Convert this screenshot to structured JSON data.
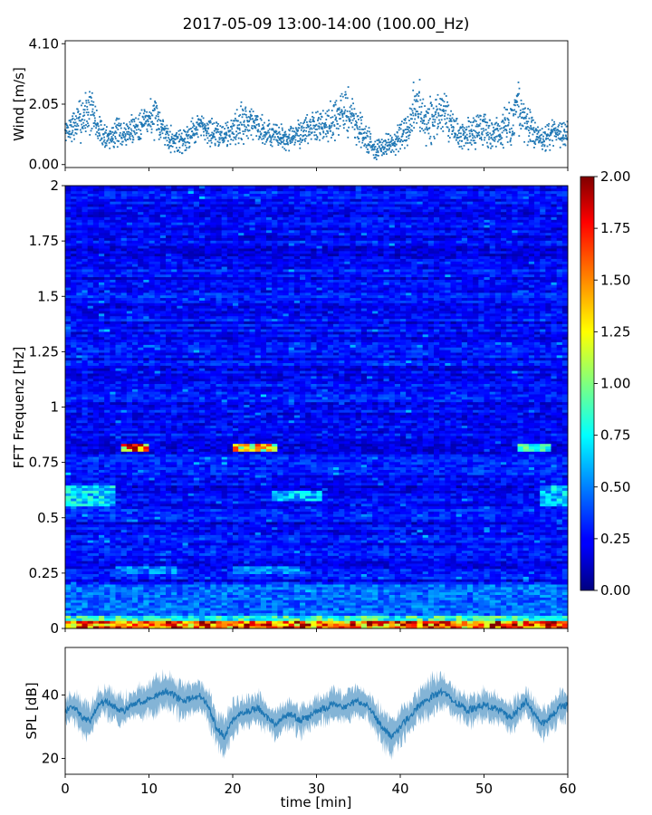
{
  "figure": {
    "title": "2017-05-09 13:00-14:00 (100.00_Hz)"
  },
  "chart_data": [
    {
      "id": "wind",
      "type": "scatter",
      "ylabel": "Wind [m/s]",
      "xlim": [
        0,
        60
      ],
      "ylim": [
        -0.1,
        4.2
      ],
      "yticks": [
        0.0,
        2.05,
        4.1
      ],
      "yticklabels": [
        "0.00",
        "2.05",
        "4.10"
      ],
      "color": "#1f77b4",
      "grid": false,
      "series": [
        {
          "x": [
            0,
            1,
            2,
            3,
            4,
            5,
            6,
            7,
            8,
            9,
            10,
            11,
            12,
            13,
            14,
            15,
            16,
            17,
            18,
            19,
            20,
            21,
            22,
            23,
            24,
            25,
            26,
            27,
            28,
            29,
            30,
            31,
            32,
            33,
            34,
            35,
            36,
            37,
            38,
            39,
            40,
            41,
            42,
            43,
            44,
            45,
            46,
            47,
            48,
            49,
            50,
            51,
            52,
            53,
            54,
            55,
            56,
            57,
            58,
            59,
            60
          ],
          "y": [
            1.1,
            1.3,
            1.6,
            1.9,
            1.2,
            0.9,
            1.1,
            1.0,
            1.2,
            1.4,
            1.6,
            1.5,
            1.1,
            0.8,
            0.8,
            1.1,
            1.3,
            1.2,
            1.0,
            1.0,
            1.2,
            1.4,
            1.5,
            1.3,
            1.1,
            1.0,
            0.9,
            0.9,
            1.1,
            1.2,
            1.3,
            1.4,
            1.5,
            1.7,
            1.8,
            1.2,
            0.9,
            0.5,
            0.6,
            0.7,
            0.9,
            1.1,
            2.2,
            1.3,
            1.5,
            1.9,
            1.4,
            1.0,
            1.0,
            1.1,
            1.2,
            1.0,
            1.1,
            1.4,
            1.9,
            1.4,
            1.0,
            0.8,
            1.0,
            1.1,
            1.1
          ],
          "spread": [
            0.5,
            0.6,
            0.9,
            1.0,
            0.6,
            0.5,
            0.6,
            0.5,
            0.6,
            0.7,
            0.8,
            0.7,
            0.6,
            0.5,
            0.5,
            0.6,
            0.6,
            0.6,
            0.5,
            0.5,
            0.6,
            0.9,
            0.7,
            0.6,
            0.6,
            0.5,
            0.5,
            0.5,
            0.6,
            0.6,
            0.6,
            0.7,
            0.8,
            0.9,
            1.0,
            0.7,
            0.6,
            0.4,
            0.4,
            0.5,
            0.6,
            0.7,
            1.4,
            0.8,
            1.0,
            1.0,
            0.8,
            0.6,
            0.6,
            0.6,
            0.7,
            0.6,
            0.7,
            0.8,
            1.3,
            0.8,
            0.6,
            0.5,
            0.6,
            0.6,
            0.6
          ]
        }
      ]
    },
    {
      "id": "spectrogram",
      "type": "heatmap",
      "ylabel": "FFT Frequenz [Hz]",
      "xlim": [
        0,
        60
      ],
      "ylim": [
        0,
        2
      ],
      "yticks": [
        0,
        0.25,
        0.5,
        0.75,
        1,
        1.25,
        1.5,
        1.75,
        2
      ],
      "yticklabels": [
        "0",
        "0.25",
        "0.5",
        "0.75",
        "1",
        "1.25",
        "1.5",
        "1.75",
        "2"
      ],
      "colormap": "jet",
      "clim": [
        0,
        2
      ],
      "colorbar_ticks": [
        0,
        0.25,
        0.5,
        0.75,
        1,
        1.25,
        1.5,
        1.75,
        2
      ],
      "colorbar_ticklabels": [
        "0.00",
        "0.25",
        "0.50",
        "0.75",
        "1.00",
        "1.25",
        "1.50",
        "1.75",
        "2.00"
      ],
      "background_level": 0.25,
      "features": [
        {
          "freq": [
            0.0,
            0.03
          ],
          "time": [
            0,
            60
          ],
          "value": 1.9
        },
        {
          "freq": [
            0.03,
            0.06
          ],
          "time": [
            0,
            60
          ],
          "value": 1.0
        },
        {
          "freq": [
            0.06,
            0.2
          ],
          "time": [
            0,
            60
          ],
          "value": 0.55
        },
        {
          "freq": [
            0.8,
            0.83
          ],
          "time": [
            7,
            10
          ],
          "value": 1.8
        },
        {
          "freq": [
            0.8,
            0.83
          ],
          "time": [
            20,
            25
          ],
          "value": 1.5
        },
        {
          "freq": [
            0.8,
            0.83
          ],
          "time": [
            54,
            58
          ],
          "value": 1.0
        },
        {
          "freq": [
            0.55,
            0.65
          ],
          "time": [
            0,
            6
          ],
          "value": 0.8
        },
        {
          "freq": [
            0.58,
            0.62
          ],
          "time": [
            25,
            31
          ],
          "value": 0.75
        },
        {
          "freq": [
            0.55,
            0.65
          ],
          "time": [
            57,
            60
          ],
          "value": 0.75
        },
        {
          "freq": [
            0.25,
            0.28
          ],
          "time": [
            6,
            13
          ],
          "value": 0.6
        },
        {
          "freq": [
            0.25,
            0.28
          ],
          "time": [
            20,
            28
          ],
          "value": 0.6
        }
      ]
    },
    {
      "id": "spl",
      "type": "area",
      "ylabel": "SPL [dB]",
      "xlabel": "time [min]",
      "xlim": [
        0,
        60
      ],
      "ylim": [
        15,
        55
      ],
      "xticks": [
        0,
        10,
        20,
        30,
        40,
        50,
        60
      ],
      "xticklabels": [
        "0",
        "10",
        "20",
        "30",
        "40",
        "50",
        "60"
      ],
      "yticks": [
        20,
        40
      ],
      "yticklabels": [
        "20",
        "40"
      ],
      "color": "#1f77b4",
      "grid": false,
      "series": [
        {
          "x": [
            0,
            1,
            2,
            3,
            4,
            5,
            6,
            7,
            8,
            9,
            10,
            11,
            12,
            13,
            14,
            15,
            16,
            17,
            18,
            19,
            20,
            21,
            22,
            23,
            24,
            25,
            26,
            27,
            28,
            29,
            30,
            31,
            32,
            33,
            34,
            35,
            36,
            37,
            38,
            39,
            40,
            41,
            42,
            43,
            44,
            45,
            46,
            47,
            48,
            49,
            50,
            51,
            52,
            53,
            54,
            55,
            56,
            57,
            58,
            59,
            60
          ],
          "y": [
            35,
            36,
            33,
            32,
            37,
            38,
            36,
            35,
            37,
            38,
            39,
            40,
            41,
            40,
            38,
            39,
            40,
            37,
            30,
            27,
            32,
            34,
            35,
            36,
            33,
            31,
            33,
            34,
            32,
            33,
            35,
            36,
            37,
            36,
            37,
            38,
            37,
            33,
            29,
            27,
            30,
            33,
            36,
            38,
            40,
            41,
            39,
            37,
            35,
            36,
            37,
            36,
            35,
            33,
            35,
            38,
            34,
            31,
            33,
            36,
            37
          ],
          "spread": [
            4,
            4,
            5,
            4,
            4,
            4,
            4,
            4,
            4,
            4,
            5,
            5,
            5,
            5,
            5,
            4,
            4,
            5,
            5,
            5,
            5,
            4,
            4,
            4,
            4,
            4,
            4,
            4,
            4,
            4,
            4,
            4,
            4,
            4,
            4,
            4,
            4,
            4,
            5,
            5,
            5,
            4,
            4,
            5,
            5,
            5,
            4,
            4,
            4,
            4,
            4,
            4,
            4,
            4,
            4,
            4,
            4,
            4,
            4,
            4,
            4
          ]
        }
      ]
    }
  ]
}
